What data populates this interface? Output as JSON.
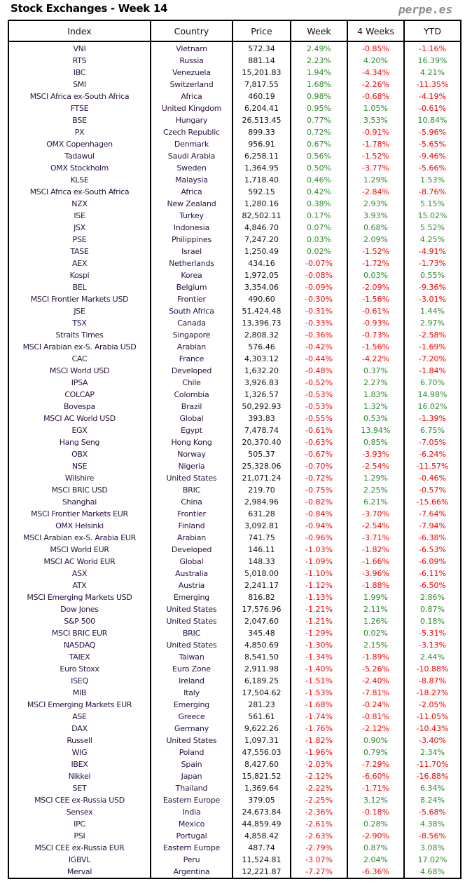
{
  "title": "Stock Exchanges - Week 14",
  "brand": "perpe.es",
  "colors": {
    "positive": "#2e8b2e",
    "negative": "#ff0000"
  },
  "columns": [
    "Index",
    "Country",
    "Price",
    "Week",
    "4 Weeks",
    "YTD"
  ],
  "rows": [
    [
      "VNI",
      "Vietnam",
      "572.34",
      "2.49%",
      "-0.85%",
      "-1.16%"
    ],
    [
      "RTS",
      "Russia",
      "881.14",
      "2.23%",
      "4.20%",
      "16.39%"
    ],
    [
      "IBC",
      "Venezuela",
      "15,201.83",
      "1.94%",
      "-4.34%",
      "4.21%"
    ],
    [
      "SMI",
      "Switzerland",
      "7,817.55",
      "1.68%",
      "-2.26%",
      "-11.35%"
    ],
    [
      "MSCI Africa ex-South Africa",
      "Africa",
      "460.19",
      "0.98%",
      "-0.68%",
      "-4.19%"
    ],
    [
      "FTSE",
      "United Kingdom",
      "6,204.41",
      "0.95%",
      "1.05%",
      "-0.61%"
    ],
    [
      "BSE",
      "Hungary",
      "26,513.45",
      "0.77%",
      "3.53%",
      "10.84%"
    ],
    [
      "PX",
      "Czech Republic",
      "899.33",
      "0.72%",
      "-0.91%",
      "-5.96%"
    ],
    [
      "OMX Copenhagen",
      "Denmark",
      "956.91",
      "0.67%",
      "-1.78%",
      "-5.65%"
    ],
    [
      "Tadawul",
      "Saudi Arabia",
      "6,258.11",
      "0.56%",
      "-1.52%",
      "-9.46%"
    ],
    [
      "OMX Stockholm",
      "Sweden",
      "1,364.95",
      "0.50%",
      "-3.77%",
      "-5.66%"
    ],
    [
      "KLSE",
      "Malaysia",
      "1,718.40",
      "0.46%",
      "1.29%",
      "1.53%"
    ],
    [
      "MSCI Africa ex-South Africa",
      "Africa",
      "592.15",
      "0.42%",
      "-2.84%",
      "-8.76%"
    ],
    [
      "NZX",
      "New Zealand",
      "1,280.16",
      "0.38%",
      "2.93%",
      "5.15%"
    ],
    [
      "ISE",
      "Turkey",
      "82,502.11",
      "0.17%",
      "3.93%",
      "15.02%"
    ],
    [
      "JSX",
      "Indonesia",
      "4,846.70",
      "0.07%",
      "0.68%",
      "5.52%"
    ],
    [
      "PSE",
      "Philippines",
      "7,247.20",
      "0.03%",
      "2.09%",
      "4.25%"
    ],
    [
      "TASE",
      "Israel",
      "1,250.49",
      "0.02%",
      "-1.52%",
      "-4.91%"
    ],
    [
      "AEX",
      "Netherlands",
      "434.16",
      "-0.07%",
      "-1.72%",
      "-1.73%"
    ],
    [
      "Kospi",
      "Korea",
      "1,972.05",
      "-0.08%",
      "0.03%",
      "0.55%"
    ],
    [
      "BEL",
      "Belgium",
      "3,354.06",
      "-0.09%",
      "-2.09%",
      "-9.36%"
    ],
    [
      "MSCI Frontier Markets USD",
      "Frontier",
      "490.60",
      "-0.30%",
      "-1.56%",
      "-3.01%"
    ],
    [
      "JSE",
      "South Africa",
      "51,424.48",
      "-0.31%",
      "-0.61%",
      "1.44%"
    ],
    [
      "TSX",
      "Canada",
      "13,396.73",
      "-0.33%",
      "-0.93%",
      "2.97%"
    ],
    [
      "Straits Times",
      "Singapore",
      "2,808.32",
      "-0.36%",
      "-0.73%",
      "-2.58%"
    ],
    [
      "MSCI Arabian ex-S. Arabia USD",
      "Arabian",
      "576.46",
      "-0.42%",
      "-1.56%",
      "-1.69%"
    ],
    [
      "CAC",
      "France",
      "4,303.12",
      "-0.44%",
      "-4.22%",
      "-7.20%"
    ],
    [
      "MSCI World USD",
      "Developed",
      "1,632.20",
      "-0.48%",
      "0.37%",
      "-1.84%"
    ],
    [
      "IPSA",
      "Chile",
      "3,926.83",
      "-0.52%",
      "2.27%",
      "6.70%"
    ],
    [
      "COLCAP",
      "Colombia",
      "1,326.57",
      "-0.53%",
      "1.83%",
      "14.98%"
    ],
    [
      "Bovespa",
      "Brazil",
      "50,292.93",
      "-0.53%",
      "1.32%",
      "16.02%"
    ],
    [
      "MSCI AC World USD",
      "Global",
      "393.83",
      "-0.55%",
      "0.53%",
      "-1.39%"
    ],
    [
      "EGX",
      "Egypt",
      "7,478.74",
      "-0.61%",
      "13.94%",
      "6.75%"
    ],
    [
      "Hang Seng",
      "Hong Kong",
      "20,370.40",
      "-0.63%",
      "0.85%",
      "-7.05%"
    ],
    [
      "OBX",
      "Norway",
      "505.37",
      "-0.67%",
      "-3.93%",
      "-6.24%"
    ],
    [
      "NSE",
      "Nigeria",
      "25,328.06",
      "-0.70%",
      "-2.54%",
      "-11.57%"
    ],
    [
      "Wilshire",
      "United States",
      "21,071.24",
      "-0.72%",
      "1.29%",
      "-0.46%"
    ],
    [
      "MSCI BRIC USD",
      "BRIC",
      "219.70",
      "-0.75%",
      "2.25%",
      "-0.57%"
    ],
    [
      "Shanghai",
      "China",
      "2,984.96",
      "-0.82%",
      "6.21%",
      "-15.66%"
    ],
    [
      "MSCI Frontier Markets EUR",
      "Frontier",
      "631.28",
      "-0.84%",
      "-3.70%",
      "-7.64%"
    ],
    [
      "OMX Helsinki",
      "Finland",
      "3,092.81",
      "-0.94%",
      "-2.54%",
      "-7.94%"
    ],
    [
      "MSCI Arabian ex-S. Arabia EUR",
      "Arabian",
      "741.75",
      "-0.96%",
      "-3.71%",
      "-6.38%"
    ],
    [
      "MSCI World EUR",
      "Developed",
      "146.11",
      "-1.03%",
      "-1.82%",
      "-6.53%"
    ],
    [
      "MSCI AC World EUR",
      "Global",
      "148.33",
      "-1.09%",
      "-1.66%",
      "-6.09%"
    ],
    [
      "ASX",
      "Australia",
      "5,018.00",
      "-1.10%",
      "-3.96%",
      "-6.11%"
    ],
    [
      "ATX",
      "Austria",
      "2,241.17",
      "-1.12%",
      "-1.88%",
      "-6.50%"
    ],
    [
      "MSCI Emerging Markets USD",
      "Emerging",
      "816.82",
      "-1.13%",
      "1.99%",
      "2.86%"
    ],
    [
      "Dow Jones",
      "United States",
      "17,576.96",
      "-1.21%",
      "2.11%",
      "0.87%"
    ],
    [
      "S&P 500",
      "United States",
      "2,047.60",
      "-1.21%",
      "1.26%",
      "0.18%"
    ],
    [
      "MSCI BRIC EUR",
      "BRIC",
      "345.48",
      "-1.29%",
      "0.02%",
      "-5.31%"
    ],
    [
      "NASDAQ",
      "United States",
      "4,850.69",
      "-1.30%",
      "2.15%",
      "-3.13%"
    ],
    [
      "TAIEX",
      "Taiwan",
      "8,541.50",
      "-1.34%",
      "-1.89%",
      "2.44%"
    ],
    [
      "Euro Stoxx",
      "Euro Zone",
      "2,911.98",
      "-1.40%",
      "-5.26%",
      "-10.88%"
    ],
    [
      "ISEQ",
      "Ireland",
      "6,189.25",
      "-1.51%",
      "-2.40%",
      "-8.87%"
    ],
    [
      "MIB",
      "Italy",
      "17,504.62",
      "-1.53%",
      "-7.81%",
      "-18.27%"
    ],
    [
      "MSCI Emerging Markets EUR",
      "Emerging",
      "281.23",
      "-1.68%",
      "-0.24%",
      "-2.05%"
    ],
    [
      "ASE",
      "Greece",
      "561.61",
      "-1.74%",
      "-0.81%",
      "-11.05%"
    ],
    [
      "DAX",
      "Germany",
      "9,622.26",
      "-1.76%",
      "-2.12%",
      "-10.43%"
    ],
    [
      "Russell",
      "United States",
      "1,097.31",
      "-1.82%",
      "0.90%",
      "-3.40%"
    ],
    [
      "WIG",
      "Poland",
      "47,556.03",
      "-1.96%",
      "0.79%",
      "2.34%"
    ],
    [
      "IBEX",
      "Spain",
      "8,427.60",
      "-2.03%",
      "-7.29%",
      "-11.70%"
    ],
    [
      "Nikkei",
      "Japan",
      "15,821.52",
      "-2.12%",
      "-6.60%",
      "-16.88%"
    ],
    [
      "SET",
      "Thailand",
      "1,369.64",
      "-2.22%",
      "-1.71%",
      "6.34%"
    ],
    [
      "MSCI CEE ex-Russia USD",
      "Eastern Europe",
      "379.05",
      "-2.25%",
      "3.12%",
      "8.24%"
    ],
    [
      "Sensex",
      "India",
      "24,673.84",
      "-2.36%",
      "-0.18%",
      "-5.68%"
    ],
    [
      "IPC",
      "Mexico",
      "44,859.49",
      "-2.61%",
      "0.28%",
      "4.38%"
    ],
    [
      "PSI",
      "Portugal",
      "4,858.42",
      "-2.63%",
      "-2.90%",
      "-8.56%"
    ],
    [
      "MSCI CEE ex-Russia EUR",
      "Eastern Europe",
      "487.74",
      "-2.79%",
      "0.87%",
      "3.08%"
    ],
    [
      "IGBVL",
      "Peru",
      "11,524.81",
      "-3.07%",
      "2.04%",
      "17.02%"
    ],
    [
      "Merval",
      "Argentina",
      "12,221.87",
      "-7.27%",
      "-6.36%",
      "4.68%"
    ]
  ]
}
